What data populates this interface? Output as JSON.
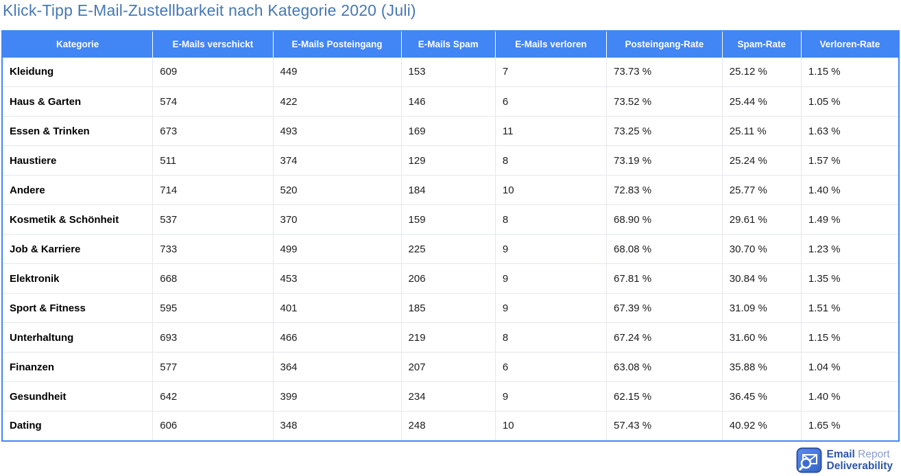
{
  "page": {
    "title": "Klick-Tipp E-Mail-Zustellbarkeit nach Kategorie 2020 (Juli)"
  },
  "colors": {
    "header_bg": "#4285F4",
    "table_border": "#4285F4",
    "title_text": "#4577B5",
    "brand_blue": "#2B55A8",
    "brand_light": "#8A9CC9"
  },
  "logo": {
    "icon": "email-magnifier-icon",
    "line1_bold": "Email",
    "line1_light": "Report",
    "line2_bold": "Deliverability"
  },
  "chart_data": {
    "type": "table",
    "title": "Klick-Tipp E-Mail-Zustellbarkeit nach Kategorie 2020 (Juli)",
    "columns": [
      "Kategorie",
      "E-Mails verschickt",
      "E-Mails Posteingang",
      "E-Mails Spam",
      "E-Mails verloren",
      "Posteingang-Rate",
      "Spam-Rate",
      "Verloren-Rate"
    ],
    "rows": [
      [
        "Kleidung",
        "609",
        "449",
        "153",
        "7",
        "73.73 %",
        "25.12 %",
        "1.15 %"
      ],
      [
        "Haus & Garten",
        "574",
        "422",
        "146",
        "6",
        "73.52 %",
        "25.44 %",
        "1.05 %"
      ],
      [
        "Essen & Trinken",
        "673",
        "493",
        "169",
        "11",
        "73.25 %",
        "25.11 %",
        "1.63 %"
      ],
      [
        "Haustiere",
        "511",
        "374",
        "129",
        "8",
        "73.19 %",
        "25.24 %",
        "1.57 %"
      ],
      [
        "Andere",
        "714",
        "520",
        "184",
        "10",
        "72.83 %",
        "25.77 %",
        "1.40 %"
      ],
      [
        "Kosmetik & Schönheit",
        "537",
        "370",
        "159",
        "8",
        "68.90 %",
        "29.61 %",
        "1.49 %"
      ],
      [
        "Job & Karriere",
        "733",
        "499",
        "225",
        "9",
        "68.08 %",
        "30.70 %",
        "1.23 %"
      ],
      [
        "Elektronik",
        "668",
        "453",
        "206",
        "9",
        "67.81 %",
        "30.84 %",
        "1.35 %"
      ],
      [
        "Sport & Fitness",
        "595",
        "401",
        "185",
        "9",
        "67.39 %",
        "31.09 %",
        "1.51 %"
      ],
      [
        "Unterhaltung",
        "693",
        "466",
        "219",
        "8",
        "67.24 %",
        "31.60 %",
        "1.15 %"
      ],
      [
        "Finanzen",
        "577",
        "364",
        "207",
        "6",
        "63.08 %",
        "35.88 %",
        "1.04 %"
      ],
      [
        "Gesundheit",
        "642",
        "399",
        "234",
        "9",
        "62.15 %",
        "36.45 %",
        "1.40 %"
      ],
      [
        "Dating",
        "606",
        "348",
        "248",
        "10",
        "57.43 %",
        "40.92 %",
        "1.65 %"
      ]
    ]
  }
}
